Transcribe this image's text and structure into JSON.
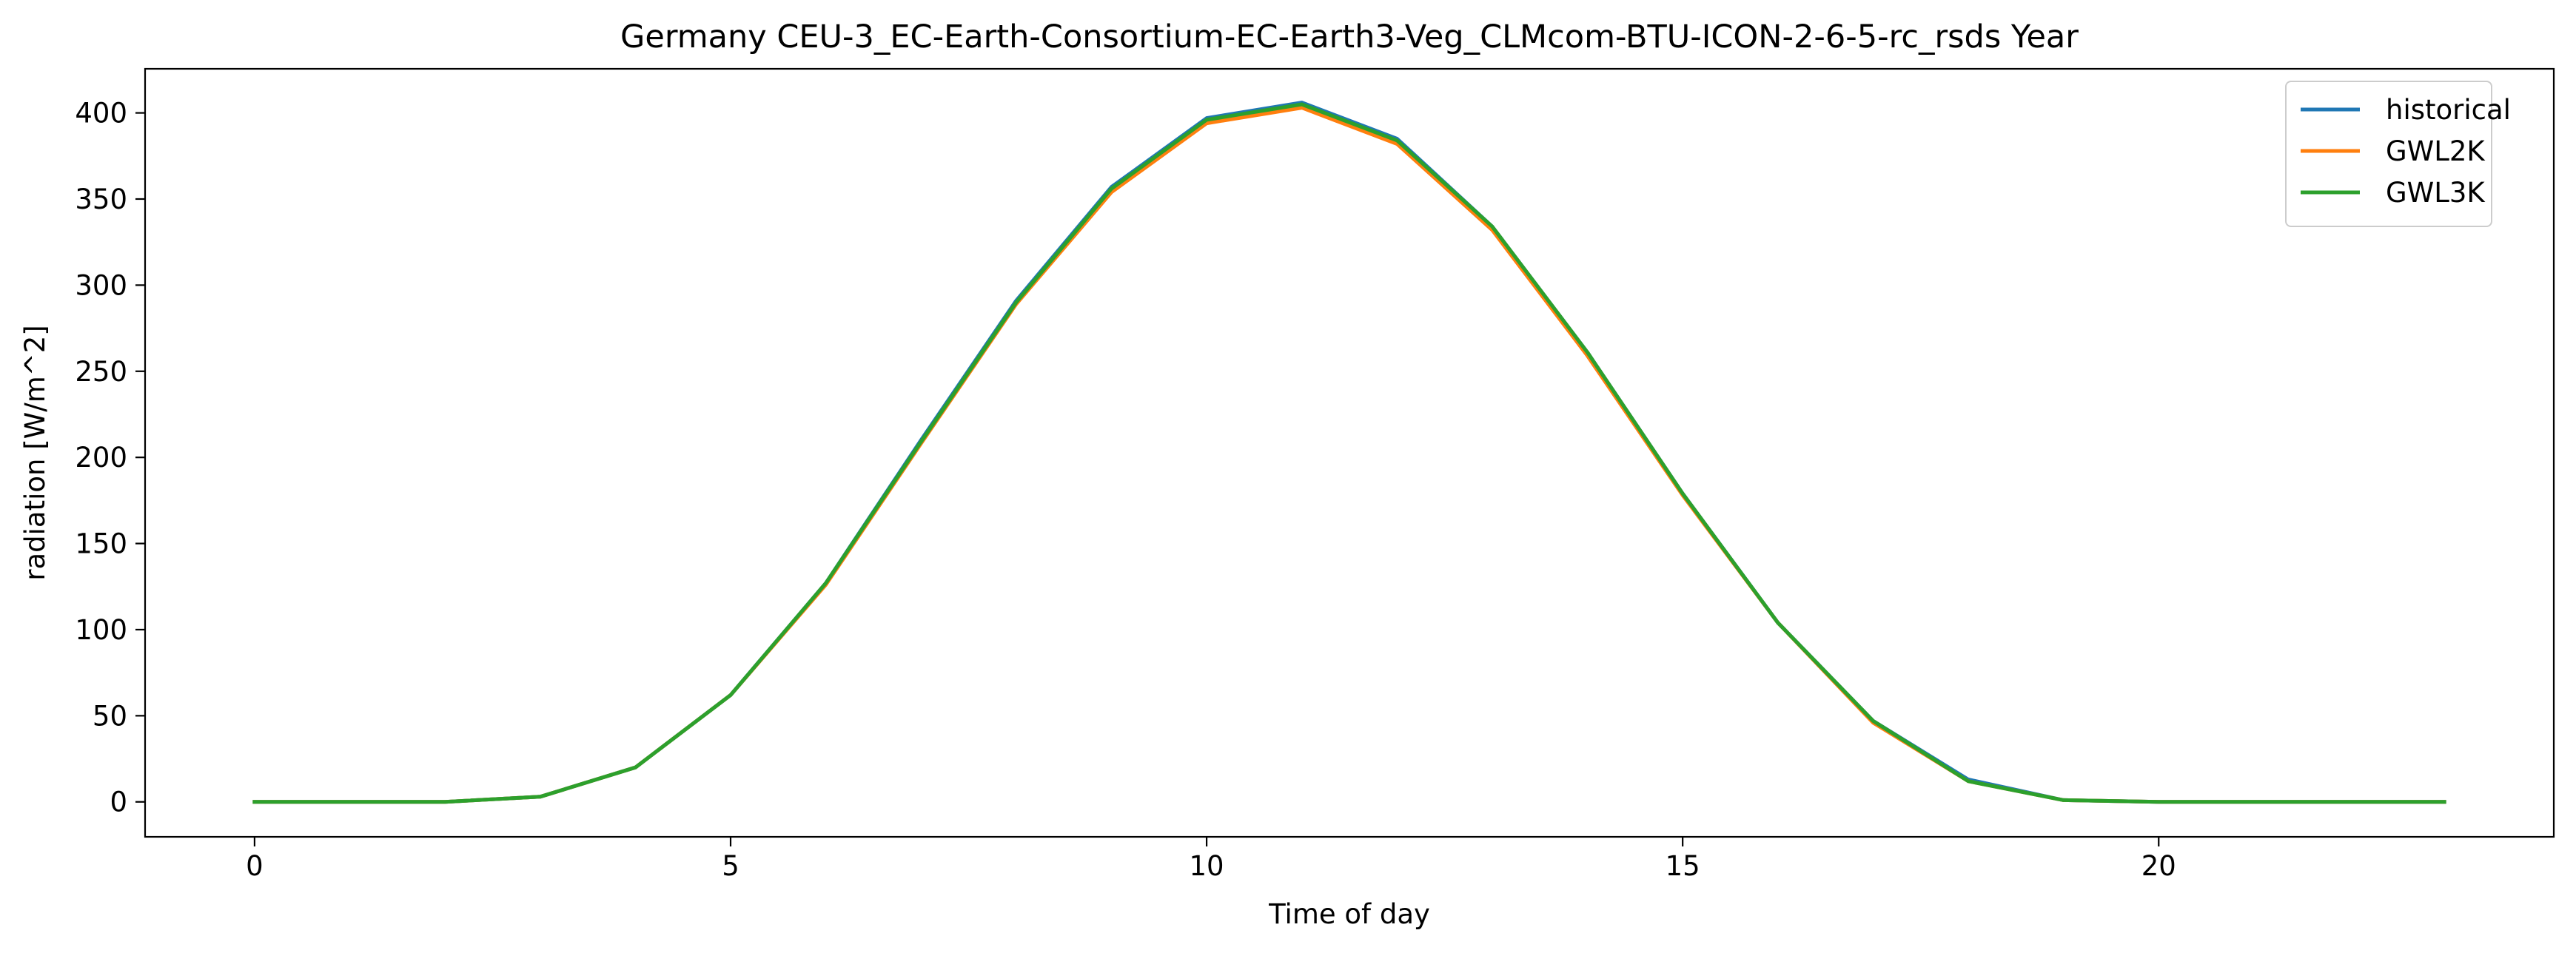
{
  "chart_data": {
    "type": "line",
    "title": "Germany CEU-3_EC-Earth-Consortium-EC-Earth3-Veg_CLMcom-BTU-ICON-2-6-5-rc_rsds Year",
    "xlabel": "Time of day",
    "ylabel": "radiation [W/m^2]",
    "xlim": [
      -1.15,
      24.15
    ],
    "ylim": [
      -20.3,
      425.6
    ],
    "xticks": [
      0,
      5,
      10,
      15,
      20
    ],
    "yticks": [
      0,
      50,
      100,
      150,
      200,
      250,
      300,
      350,
      400
    ],
    "grid": false,
    "legend": "top-right",
    "x": [
      0,
      1,
      2,
      3,
      4,
      5,
      6,
      7,
      8,
      9,
      10,
      11,
      12,
      13,
      14,
      15,
      16,
      17,
      18,
      19,
      20,
      21,
      22,
      23
    ],
    "series": [
      {
        "name": "historical",
        "color": "#1f77b4",
        "values": [
          0,
          0,
          0,
          3,
          20,
          62,
          127,
          210,
          291,
          357,
          397,
          406,
          385,
          334,
          261,
          179,
          104,
          47,
          13,
          1,
          0,
          0,
          0,
          0
        ]
      },
      {
        "name": "GWL2K",
        "color": "#ff7f0e",
        "values": [
          0,
          0,
          0,
          3,
          20,
          62,
          126,
          208,
          289,
          354,
          394,
          403,
          382,
          332,
          259,
          178,
          104,
          46,
          12,
          1,
          0,
          0,
          0,
          0
        ]
      },
      {
        "name": "GWL3K",
        "color": "#2ca02c",
        "values": [
          0,
          0,
          0,
          3,
          20,
          62,
          127,
          209,
          290,
          356,
          396,
          405,
          384,
          334,
          261,
          179,
          104,
          47,
          12,
          1,
          0,
          0,
          0,
          0
        ]
      }
    ]
  }
}
